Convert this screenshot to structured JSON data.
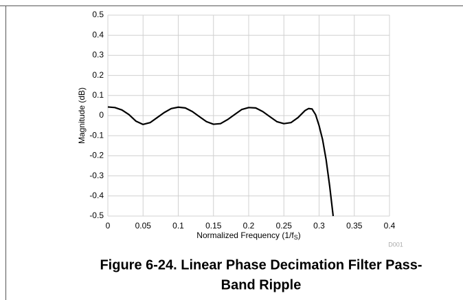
{
  "chart_data": {
    "type": "line",
    "x_label": {
      "text": "Normalized Frequency (1/f",
      "sub": "S",
      "end": ")"
    },
    "y_label": "Magnitude (dB)",
    "watermark": "D001",
    "caption": [
      "Figure 6-24. Linear Phase Decimation Filter Pass-",
      "Band Ripple"
    ],
    "x": [
      0,
      0.01,
      0.02,
      0.03,
      0.04,
      0.05,
      0.06,
      0.07,
      0.08,
      0.09,
      0.1,
      0.11,
      0.12,
      0.13,
      0.14,
      0.15,
      0.16,
      0.17,
      0.18,
      0.19,
      0.2,
      0.21,
      0.22,
      0.23,
      0.24,
      0.25,
      0.26,
      0.27,
      0.28,
      0.285,
      0.29,
      0.295,
      0.3,
      0.305,
      0.31,
      0.315,
      0.32
    ],
    "values": [
      0.043,
      0.04,
      0.028,
      0.005,
      -0.028,
      -0.044,
      -0.035,
      -0.01,
      0.015,
      0.035,
      0.042,
      0.038,
      0.02,
      -0.005,
      -0.03,
      -0.043,
      -0.04,
      -0.02,
      0.005,
      0.03,
      0.04,
      0.038,
      0.02,
      -0.005,
      -0.03,
      -0.04,
      -0.035,
      -0.01,
      0.025,
      0.035,
      0.033,
      0.005,
      -0.05,
      -0.12,
      -0.22,
      -0.35,
      -0.5
    ],
    "color": "#000000",
    "xlim": [
      0,
      0.4
    ],
    "xticks": [
      0,
      0.05,
      0.1,
      0.15,
      0.2,
      0.25,
      0.3,
      0.35,
      0.4
    ],
    "ylim": [
      -0.5,
      0.5
    ],
    "yticks": [
      -0.5,
      -0.4,
      -0.3,
      -0.2,
      -0.1,
      0,
      0.1,
      0.2,
      0.3,
      0.4,
      0.5
    ],
    "grid": true
  }
}
